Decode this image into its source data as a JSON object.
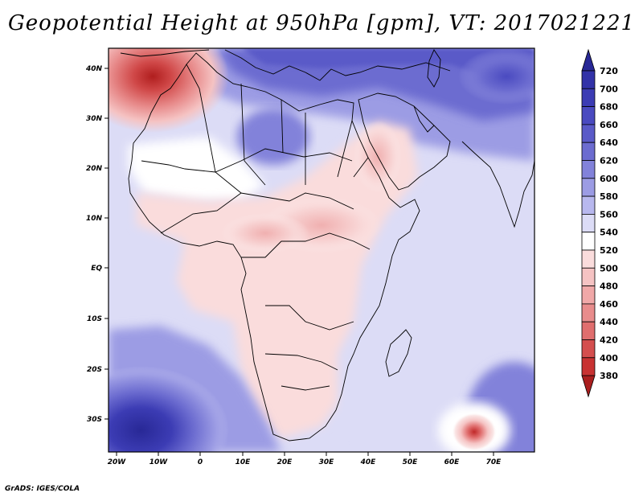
{
  "title": "Geopotential Height at 950hPa [gpm], VT: 2017021221",
  "credit": "GrADS: IGES/COLA",
  "map": {
    "lat_labels": [
      "40N",
      "30N",
      "20N",
      "10N",
      "EQ",
      "10S",
      "20S",
      "30S"
    ],
    "lon_labels": [
      "20W",
      "10W",
      "0",
      "10E",
      "20E",
      "30E",
      "40E",
      "50E",
      "60E",
      "70E"
    ]
  },
  "colorbar": {
    "levels": [
      "720",
      "700",
      "680",
      "660",
      "640",
      "620",
      "600",
      "580",
      "560",
      "540",
      "520",
      "500",
      "480",
      "460",
      "440",
      "420",
      "400",
      "380"
    ],
    "colors": [
      "#282896",
      "#3232a8",
      "#3c3cb4",
      "#4a4ac0",
      "#5a5ac8",
      "#6c6cd0",
      "#8282da",
      "#9c9ce4",
      "#b8b8ee",
      "#dcdcf6",
      "#ffffff",
      "#fadcdc",
      "#f5c3c3",
      "#f0a8a8",
      "#e88c8c",
      "#e06e6e",
      "#d44e4e",
      "#c83232",
      "#aa1e1e"
    ]
  }
}
